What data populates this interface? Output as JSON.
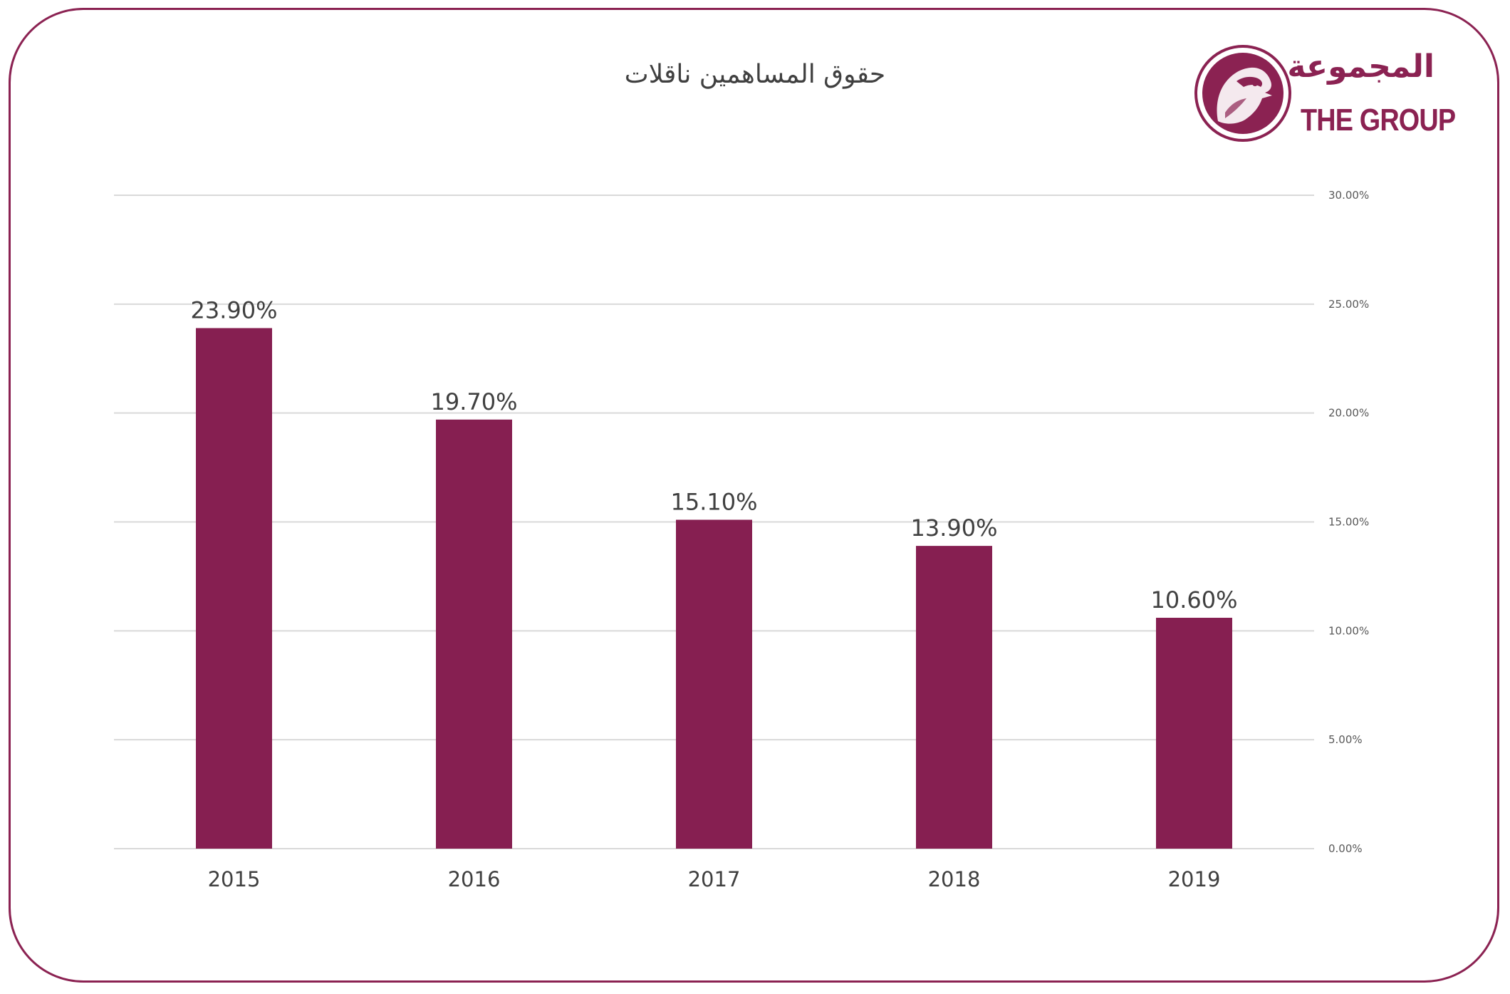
{
  "title": "حقوق المساهمين ناقلات",
  "brand": {
    "name_ar": "المجموعة",
    "name_en": "THE GROUP",
    "icon": "falcon-emblem-icon",
    "color": "#8b2252"
  },
  "chart_data": {
    "type": "bar",
    "categories": [
      "2015",
      "2016",
      "2017",
      "2018",
      "2019"
    ],
    "values": [
      23.9,
      19.7,
      15.1,
      13.9,
      10.6
    ],
    "data_labels": [
      "23.90%",
      "19.70%",
      "15.10%",
      "13.90%",
      "10.60%"
    ],
    "title": "حقوق المساهمين ناقلات",
    "xlabel": "",
    "ylabel": "",
    "ylim": [
      0,
      30
    ],
    "yticks": [
      0,
      5,
      10,
      15,
      20,
      25,
      30
    ],
    "ytick_labels": [
      "0.00%",
      "5.00%",
      "10.00%",
      "15.00%",
      "20.00%",
      "25.00%",
      "30.00%"
    ],
    "y_axis_side": "right",
    "grid": true,
    "legend": "none",
    "bar_color": "#861f51",
    "grid_color": "#d9d9d9"
  }
}
